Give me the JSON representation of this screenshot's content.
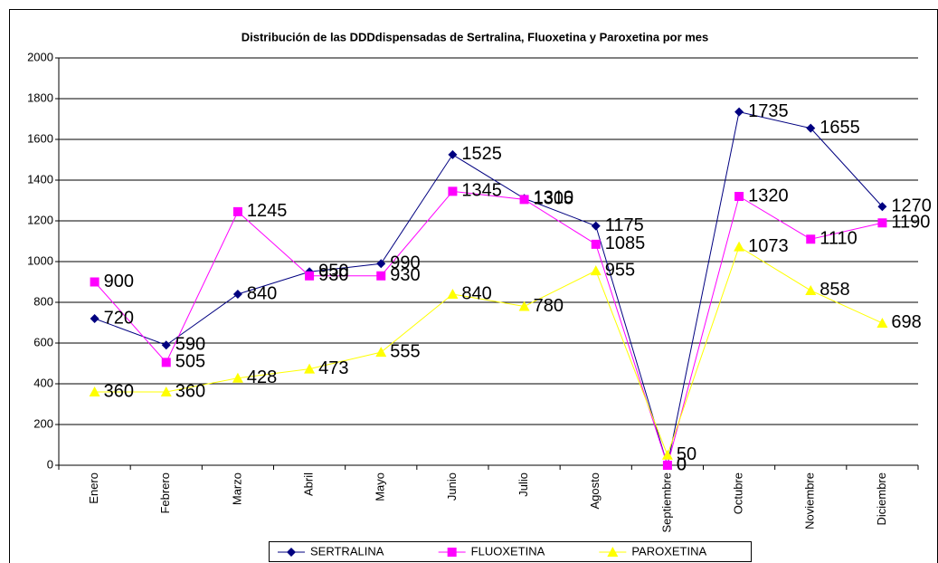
{
  "chart_data": {
    "type": "line",
    "title": "Distribución de las DDDdispensadas de Sertralina, Fluoxetina y Paroxetina por mes",
    "categories": [
      "Enero",
      "Febrero",
      "Marzo",
      "Abril",
      "Mayo",
      "Junio",
      "Julio",
      "Agosto",
      "Septiembre",
      "Octubre",
      "Noviembre",
      "Diciembre"
    ],
    "series": [
      {
        "name": "SERTRALINA",
        "color": "#000080",
        "marker": "diamond",
        "values": [
          720,
          590,
          840,
          950,
          990,
          1525,
          1310,
          1175,
          0,
          1735,
          1655,
          1270
        ]
      },
      {
        "name": "FLUOXETINA",
        "color": "#ff00ff",
        "marker": "square",
        "values": [
          900,
          505,
          1245,
          930,
          930,
          1345,
          1305,
          1085,
          0,
          1320,
          1110,
          1190
        ]
      },
      {
        "name": "PAROXETINA",
        "color": "#ffff00",
        "marker": "triangle",
        "values": [
          360,
          360,
          428,
          473,
          555,
          840,
          780,
          955,
          50,
          1073,
          858,
          698
        ]
      }
    ],
    "ylim": [
      0,
      2000
    ],
    "yticks": [
      0,
      200,
      400,
      600,
      800,
      1000,
      1200,
      1400,
      1600,
      1800,
      2000
    ],
    "grid": true,
    "legend": "bottom",
    "data_labels": true
  }
}
